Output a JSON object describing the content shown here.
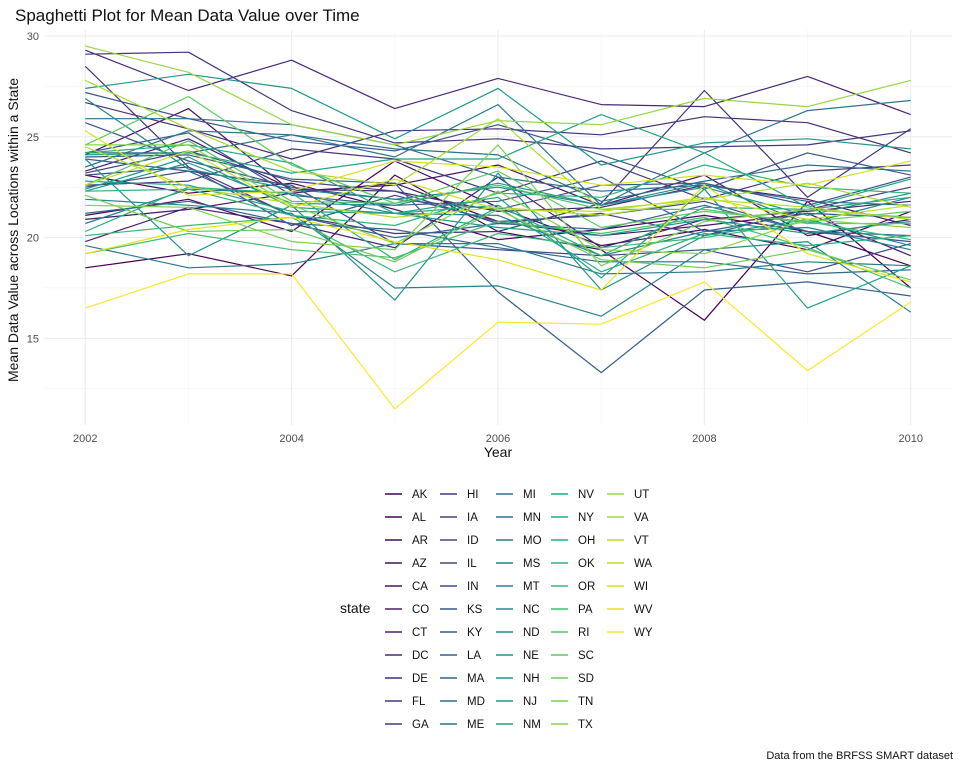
{
  "chart_data": {
    "type": "line",
    "title": "Spaghetti Plot for Mean Data Value over Time",
    "xlabel": "Year",
    "ylabel": "Mean Data Value across Locations within a State",
    "caption": "Data from the BRFSS SMART dataset",
    "legend_title": "state",
    "legend_position": "bottom",
    "grid": true,
    "xlim": [
      2001.6,
      2010.4
    ],
    "ylim": [
      10.7,
      30.3
    ],
    "x_ticks": [
      2002,
      2004,
      2006,
      2008,
      2010
    ],
    "y_ticks": [
      15,
      20,
      25,
      30
    ],
    "x": [
      2002,
      2003,
      2004,
      2005,
      2006,
      2007,
      2008,
      2009,
      2010
    ],
    "colormap": "viridis",
    "series": [
      {
        "name": "AK",
        "color": "#440154",
        "values": [
          18.5,
          19.2,
          18.1,
          23.1,
          20.3,
          19.4,
          15.9,
          21.8,
          17.5
        ]
      },
      {
        "name": "AL",
        "color": "#450559",
        "values": [
          23.1,
          22.2,
          22.7,
          21.4,
          19.9,
          20.4,
          21.1,
          20.3,
          18.6
        ]
      },
      {
        "name": "AR",
        "color": "#46085c",
        "values": [
          21.1,
          21.9,
          20.3,
          23.8,
          21.5,
          19.6,
          20.4,
          19.4,
          21.3
        ]
      },
      {
        "name": "AZ",
        "color": "#471063",
        "values": [
          24.1,
          26.4,
          22.3,
          22.6,
          23.6,
          21.6,
          23.1,
          20.1,
          20.9
        ]
      },
      {
        "name": "CA",
        "color": "#481769",
        "values": [
          20.9,
          21.4,
          22.2,
          22.7,
          20.8,
          20.1,
          20.6,
          21.2,
          19.1
        ]
      },
      {
        "name": "CO",
        "color": "#481b6d",
        "values": [
          23.3,
          24.9,
          22.4,
          22.3,
          21.3,
          21.5,
          22.6,
          21.9,
          20.6
        ]
      },
      {
        "name": "CT",
        "color": "#482071",
        "values": [
          19.8,
          21.5,
          20.7,
          19.5,
          23.0,
          19.5,
          20.9,
          21.3,
          21.8
        ]
      },
      {
        "name": "DC",
        "color": "#482878",
        "values": [
          29.3,
          27.3,
          28.8,
          26.4,
          27.9,
          26.6,
          26.5,
          28.0,
          26.1
        ]
      },
      {
        "name": "DE",
        "color": "#472c7a",
        "values": [
          26.7,
          25.4,
          23.9,
          25.3,
          25.4,
          25.1,
          26.0,
          25.7,
          24.2
        ]
      },
      {
        "name": "FL",
        "color": "#46337e",
        "values": [
          28.5,
          23.5,
          21.1,
          20.2,
          20.3,
          21.7,
          27.3,
          22.0,
          25.4
        ]
      },
      {
        "name": "GA",
        "color": "#453781",
        "values": [
          29.1,
          29.2,
          26.3,
          24.7,
          24.9,
          24.4,
          24.5,
          24.6,
          25.3
        ]
      },
      {
        "name": "HI",
        "color": "#443a83",
        "values": [
          22.6,
          22.8,
          24.4,
          23.9,
          22.2,
          23.8,
          21.9,
          23.3,
          23.6
        ]
      },
      {
        "name": "IA",
        "color": "#424086",
        "values": [
          23.2,
          24.3,
          22.8,
          22.3,
          20.7,
          21.2,
          20.1,
          21.4,
          22.5
        ]
      },
      {
        "name": "ID",
        "color": "#3f4889",
        "values": [
          22.5,
          23.3,
          22.6,
          19.7,
          19.4,
          19.1,
          19.4,
          18.3,
          19.7
        ]
      },
      {
        "name": "IL",
        "color": "#3e4a89",
        "values": [
          23.1,
          23.5,
          20.6,
          22.1,
          20.8,
          21.1,
          21.8,
          20.3,
          19.8
        ]
      },
      {
        "name": "IN",
        "color": "#3b528b",
        "values": [
          25.7,
          23.8,
          22.5,
          21.9,
          21.4,
          22.6,
          22.7,
          21.6,
          23.0
        ]
      },
      {
        "name": "KS",
        "color": "#39568c",
        "values": [
          27.2,
          25.9,
          24.8,
          24.3,
          25.6,
          24.1,
          22.4,
          24.2,
          23.1
        ]
      },
      {
        "name": "KY",
        "color": "#375a8c",
        "values": [
          24.2,
          25.2,
          22.1,
          21.6,
          21.8,
          23.0,
          20.3,
          21.2,
          21.0
        ]
      },
      {
        "name": "LA",
        "color": "#355f8d",
        "values": [
          24.0,
          24.1,
          22.9,
          22.7,
          17.3,
          13.3,
          17.4,
          17.8,
          17.1
        ]
      },
      {
        "name": "MA",
        "color": "#33638d",
        "values": [
          23.9,
          23.3,
          21.1,
          20.0,
          20.7,
          20.4,
          21.6,
          20.3,
          20.1
        ]
      },
      {
        "name": "MD",
        "color": "#31688e",
        "values": [
          21.2,
          21.8,
          20.7,
          20.4,
          19.5,
          18.8,
          18.8,
          18.2,
          18.4
        ]
      },
      {
        "name": "ME",
        "color": "#2e6e8e",
        "values": [
          25.9,
          25.9,
          25.6,
          24.6,
          23.0,
          22.3,
          22.6,
          21.8,
          21.6
        ]
      },
      {
        "name": "MI",
        "color": "#2d708e",
        "values": [
          24.2,
          24.2,
          25.1,
          24.4,
          24.1,
          21.8,
          22.8,
          23.6,
          23.3
        ]
      },
      {
        "name": "MN",
        "color": "#2b748e",
        "values": [
          23.5,
          25.3,
          25.1,
          24.0,
          26.6,
          21.6,
          24.2,
          26.3,
          26.8
        ]
      },
      {
        "name": "MO",
        "color": "#29798e",
        "values": [
          19.6,
          18.5,
          18.7,
          19.7,
          19.7,
          18.2,
          18.3,
          18.8,
          18.6
        ]
      },
      {
        "name": "MS",
        "color": "#277f8e",
        "values": [
          20.7,
          22.4,
          22.2,
          21.2,
          21.1,
          19.1,
          20.3,
          20.5,
          19.4
        ]
      },
      {
        "name": "MT",
        "color": "#25848e",
        "values": [
          21.9,
          21.6,
          21.2,
          17.5,
          17.6,
          16.1,
          19.4,
          19.8,
          16.3
        ]
      },
      {
        "name": "NC",
        "color": "#24868e",
        "values": [
          26.9,
          23.4,
          22.4,
          21.9,
          22.5,
          21.6,
          22.7,
          20.7,
          22.0
        ]
      },
      {
        "name": "ND",
        "color": "#21918c",
        "values": [
          23.9,
          19.1,
          21.6,
          16.9,
          23.2,
          17.4,
          20.1,
          20.9,
          19.6
        ]
      },
      {
        "name": "NE",
        "color": "#20938c",
        "values": [
          22.3,
          23.7,
          21.7,
          21.6,
          22.7,
          21.6,
          22.5,
          21.1,
          22.2
        ]
      },
      {
        "name": "NH",
        "color": "#1f988b",
        "values": [
          27.4,
          28.1,
          27.4,
          24.9,
          27.4,
          23.6,
          24.7,
          24.9,
          24.4
        ]
      },
      {
        "name": "NJ",
        "color": "#1e9c89",
        "values": [
          22.4,
          24.0,
          21.5,
          21.2,
          20.5,
          20.1,
          20.9,
          20.2,
          20.8
        ]
      },
      {
        "name": "NM",
        "color": "#1fa187",
        "values": [
          22.8,
          22.6,
          21.3,
          21.2,
          22.0,
          18.0,
          22.4,
          16.5,
          18.6
        ]
      },
      {
        "name": "NV",
        "color": "#21a585",
        "values": [
          24.1,
          24.2,
          23.2,
          23.9,
          23.9,
          26.1,
          24.2,
          21.5,
          22.9
        ]
      },
      {
        "name": "NY",
        "color": "#25ac82",
        "values": [
          24.2,
          24.6,
          23.7,
          21.2,
          21.6,
          19.1,
          21.5,
          21.4,
          22.0
        ]
      },
      {
        "name": "OH",
        "color": "#28ae80",
        "values": [
          20.3,
          22.5,
          22.2,
          18.9,
          21.5,
          18.3,
          20.2,
          19.6,
          20.1
        ]
      },
      {
        "name": "OK",
        "color": "#2fb47c",
        "values": [
          22.3,
          22.4,
          21.1,
          20.6,
          22.2,
          22.0,
          23.6,
          22.5,
          22.2
        ]
      },
      {
        "name": "OR",
        "color": "#3bbb75",
        "values": [
          20.1,
          20.6,
          21.0,
          18.3,
          20.2,
          19.5,
          20.0,
          20.8,
          19.9
        ]
      },
      {
        "name": "PA",
        "color": "#44bf70",
        "values": [
          19.2,
          20.2,
          19.4,
          19.0,
          20.8,
          20.2,
          21.0,
          19.5,
          17.5
        ]
      },
      {
        "name": "RI",
        "color": "#52c569",
        "values": [
          22.6,
          24.8,
          21.8,
          21.7,
          22.6,
          21.4,
          21.4,
          20.7,
          20.7
        ]
      },
      {
        "name": "SC",
        "color": "#5ec962",
        "values": [
          24.6,
          27.0,
          23.6,
          21.7,
          23.3,
          20.5,
          21.3,
          20.8,
          21.3
        ]
      },
      {
        "name": "SD",
        "color": "#6ccd5a",
        "values": [
          22.1,
          20.3,
          20.4,
          18.8,
          21.4,
          18.9,
          18.5,
          19.4,
          17.9
        ]
      },
      {
        "name": "TN",
        "color": "#7ad151",
        "values": [
          21.6,
          21.5,
          19.8,
          19.4,
          24.6,
          18.6,
          20.8,
          21.4,
          21.0
        ]
      },
      {
        "name": "TX",
        "color": "#86d549",
        "values": [
          24.6,
          24.6,
          21.6,
          19.7,
          22.3,
          19.4,
          19.2,
          20.9,
          20.5
        ]
      },
      {
        "name": "UT",
        "color": "#95d840",
        "values": [
          29.5,
          28.2,
          25.6,
          24.6,
          25.8,
          25.6,
          26.9,
          26.5,
          27.8
        ]
      },
      {
        "name": "VA",
        "color": "#a8db34",
        "values": [
          27.8,
          25.4,
          23.3,
          22.6,
          25.9,
          21.4,
          21.9,
          22.7,
          21.5
        ]
      },
      {
        "name": "VT",
        "color": "#b5de2b",
        "values": [
          24.5,
          22.5,
          21.7,
          21.0,
          21.5,
          21.1,
          21.9,
          21.5,
          20.9
        ]
      },
      {
        "name": "WA",
        "color": "#c2df23",
        "values": [
          22.6,
          24.3,
          21.5,
          22.9,
          21.4,
          21.3,
          22.0,
          20.9,
          21.6
        ]
      },
      {
        "name": "WI",
        "color": "#d8e219",
        "values": [
          25.3,
          22.1,
          22.3,
          23.8,
          23.5,
          22.6,
          23.1,
          22.6,
          23.8
        ]
      },
      {
        "name": "WV",
        "color": "#e5e419",
        "values": [
          19.2,
          20.4,
          21.0,
          19.8,
          18.9,
          17.4,
          22.6,
          19.2,
          17.8
        ]
      },
      {
        "name": "WY",
        "color": "#fde725",
        "values": [
          16.5,
          18.2,
          18.2,
          11.5,
          15.8,
          15.7,
          17.8,
          13.4,
          16.8
        ]
      }
    ]
  }
}
